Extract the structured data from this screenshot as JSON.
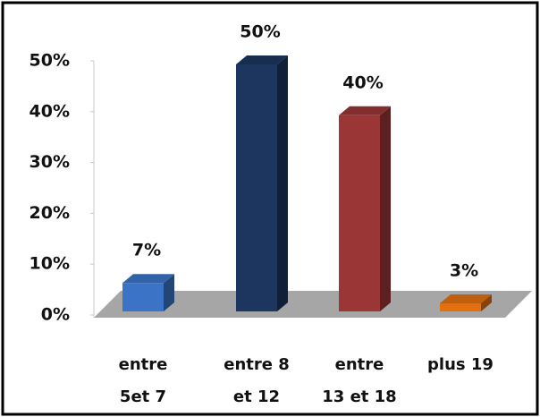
{
  "chart_data": {
    "type": "bar3d",
    "categories": [
      "entre\n5et 7",
      "entre 8\net 12",
      "entre\n13 et 18",
      "plus 19"
    ],
    "values": [
      7,
      50,
      40,
      3
    ],
    "value_labels": [
      "7%",
      "50%",
      "40%",
      "3%"
    ],
    "colors": [
      "#3b74c6",
      "#1c365f",
      "#9a3636",
      "#e2700f"
    ],
    "ylim": [
      0,
      50
    ],
    "yticks": [
      {
        "value": 0,
        "label": "0%"
      },
      {
        "value": 10,
        "label": "10%"
      },
      {
        "value": 20,
        "label": "20%"
      },
      {
        "value": 30,
        "label": "30%"
      },
      {
        "value": 40,
        "label": "40%"
      },
      {
        "value": 50,
        "label": "50%"
      }
    ]
  }
}
